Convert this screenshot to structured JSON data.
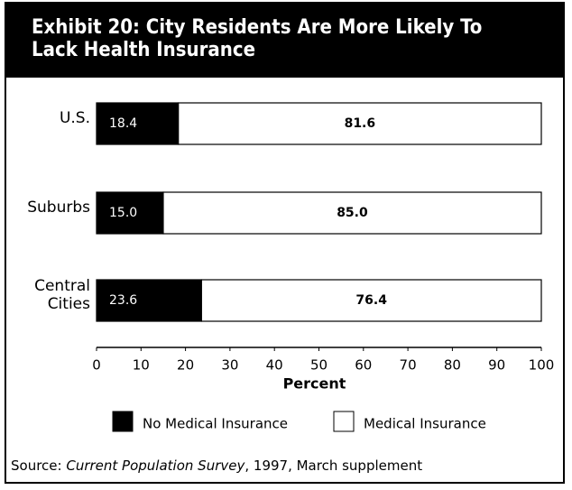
{
  "chart_data": {
    "type": "stacked_hbar",
    "title": "Exhibit 20: City Residents Are More Likely To Lack Health Insurance",
    "categories": [
      "U.S.",
      "Suburbs",
      "Central Cities"
    ],
    "series": [
      {
        "name": "No Medical Insurance",
        "color": "#000000",
        "values": [
          18.4,
          15.0,
          23.6
        ],
        "value_labels": [
          "18.4",
          "15.0",
          "23.6"
        ]
      },
      {
        "name": "Medical Insurance",
        "color": "#ffffff",
        "values": [
          81.6,
          85.0,
          76.4
        ],
        "value_labels": [
          "81.6",
          "85.0",
          "76.4"
        ]
      }
    ],
    "xlim": [
      0,
      100
    ],
    "xticks": [
      0,
      10,
      20,
      30,
      40,
      50,
      60,
      70,
      80,
      90,
      100
    ],
    "xlabel": "Percent",
    "source": {
      "label": "Source:",
      "title": "Current Population Survey",
      "rest": ", 1997, March supplement"
    }
  }
}
